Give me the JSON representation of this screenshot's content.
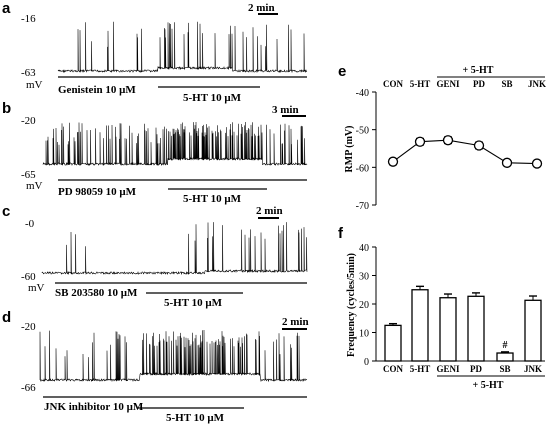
{
  "chart_data": [
    {
      "panel": "a",
      "type": "line",
      "y_top": "-16",
      "y_bottom": "-63",
      "y_unit": "mV",
      "scale_bar": "2 min",
      "drug_label": "Genistein 10 μM",
      "treatment_label": "5-HT 10 μM",
      "ylim": [
        -63,
        -16
      ]
    },
    {
      "panel": "b",
      "type": "line",
      "y_top": "-20",
      "y_bottom": "-65",
      "y_unit": "mV",
      "scale_bar": "3 min",
      "drug_label": "PD 98059 10 μM",
      "treatment_label": "5-HT 10 μM",
      "ylim": [
        -65,
        -20
      ]
    },
    {
      "panel": "c",
      "type": "line",
      "y_top": "-0",
      "y_bottom": "-60",
      "y_unit": "mV",
      "scale_bar": "2 min",
      "drug_label": "SB 203580 10 μM",
      "treatment_label": "5-HT 10 μM",
      "ylim": [
        -60,
        0
      ]
    },
    {
      "panel": "d",
      "type": "line",
      "y_top": "-20",
      "y_bottom": "-66",
      "y_unit": "mV",
      "scale_bar": "2 min",
      "drug_label": "JNK inhibitor 10 μM",
      "treatment_label": "5-HT 10 μM",
      "ylim": [
        -66,
        -20
      ]
    },
    {
      "panel": "e",
      "type": "line",
      "categories": [
        "CON",
        "5-HT",
        "GENI",
        "PD",
        "SB",
        "JNK"
      ],
      "values": [
        -58.5,
        -53.2,
        -52.8,
        -54.2,
        -58.8,
        -59.0
      ],
      "errors": [
        0.8,
        0.9,
        0.9,
        0.9,
        0.6,
        0.6
      ],
      "ylabel": "RMP (mV)",
      "ylim": [
        -70,
        -40
      ],
      "yticks": [
        "-40",
        "-50",
        "-60",
        "-70"
      ],
      "group_label": "+ 5-HT",
      "grid": false
    },
    {
      "panel": "f",
      "type": "bar",
      "categories": [
        "CON",
        "5-HT",
        "GENI",
        "PD",
        "SB",
        "JNK"
      ],
      "values": [
        12.5,
        25.0,
        22.2,
        22.7,
        2.8,
        21.3
      ],
      "errors": [
        0.6,
        1.2,
        1.3,
        1.2,
        0.4,
        1.5
      ],
      "ylabel": "Frequency (cycles/5min)",
      "ylim": [
        0,
        40
      ],
      "yticks": [
        "0",
        "10",
        "20",
        "30",
        "40"
      ],
      "group_label": "+ 5-HT",
      "annotation": "#",
      "grid": false
    }
  ]
}
